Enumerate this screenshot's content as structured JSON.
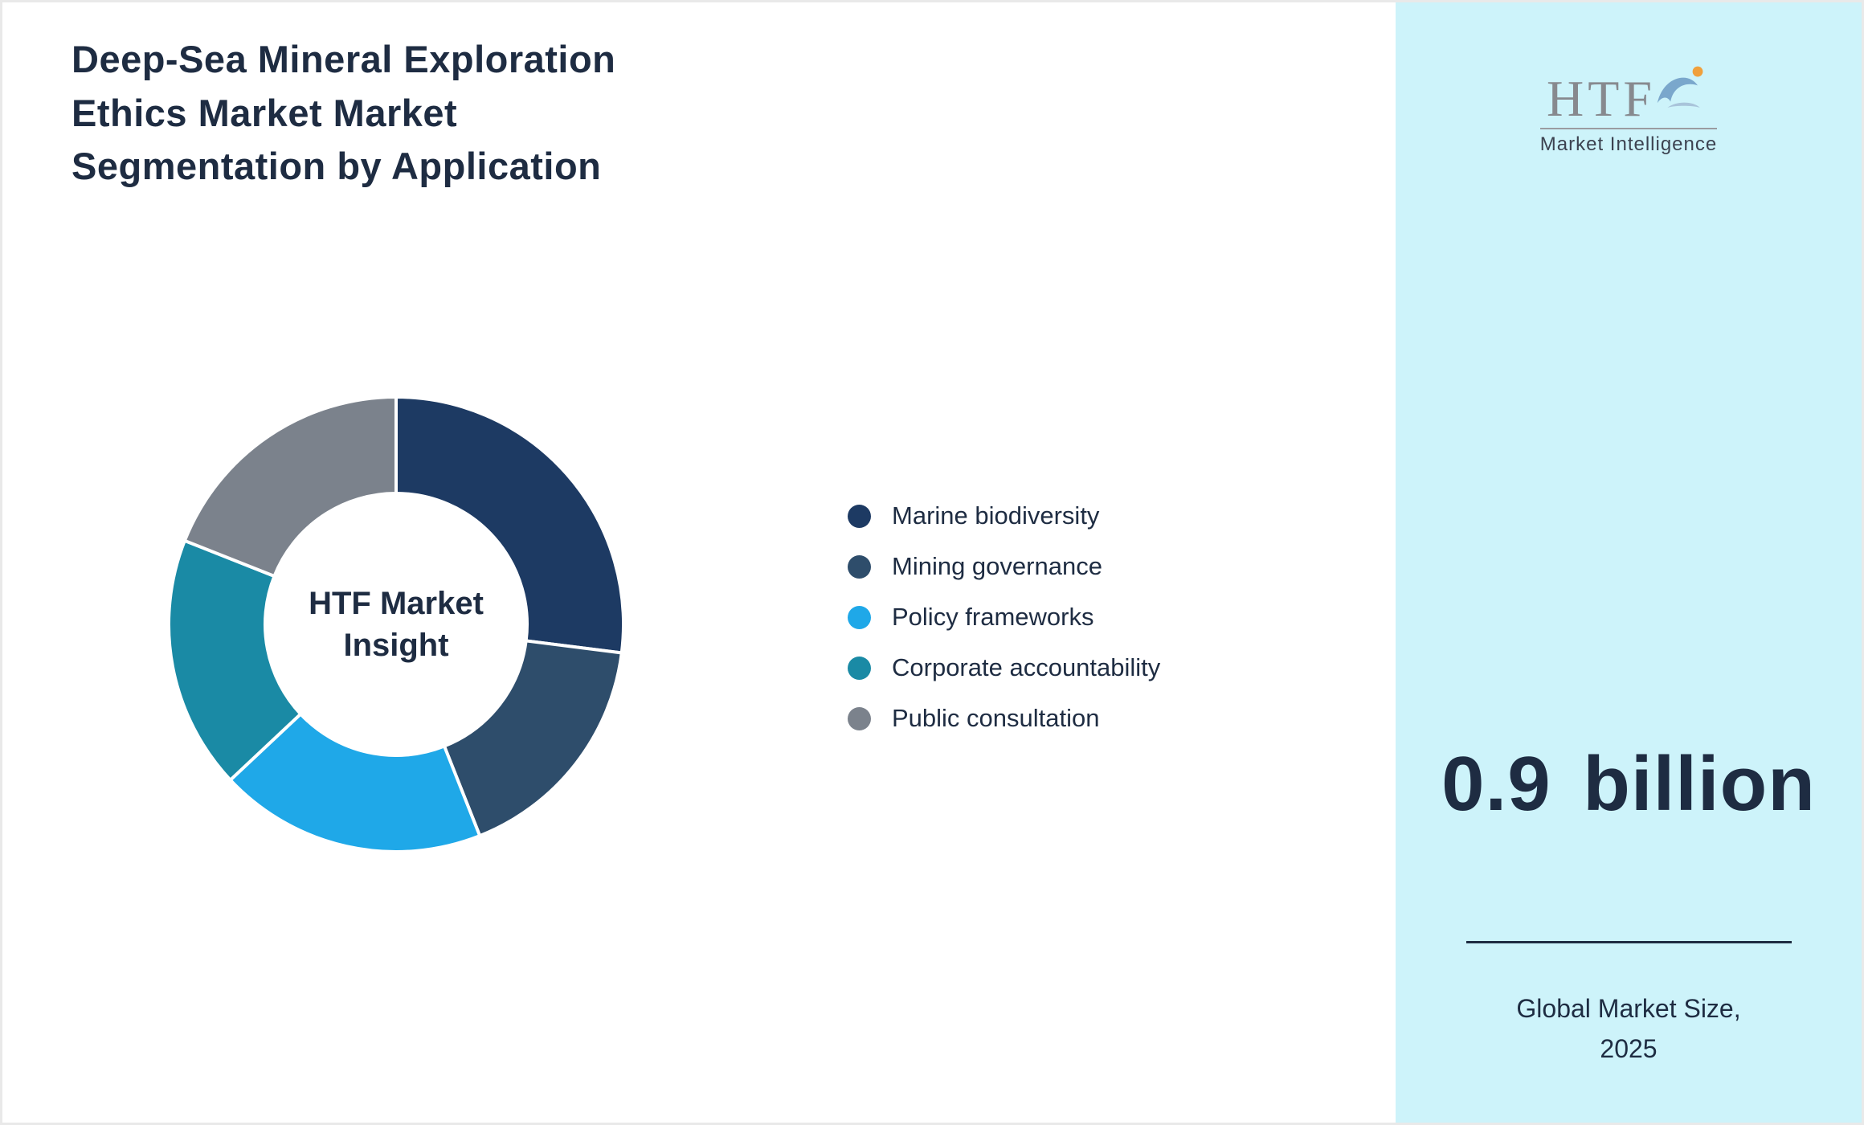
{
  "page": {
    "border_color": "#e9e9e9",
    "background": "#ffffff"
  },
  "header": {
    "title_lines": [
      "Deep-Sea Mineral Exploration",
      "Ethics Market Market",
      "Segmentation by Application"
    ]
  },
  "chart_data": {
    "type": "pie",
    "donut": true,
    "title": "Deep-Sea Mineral Exploration Ethics Market Market Segmentation by Application",
    "center_label_lines": [
      "HTF Market",
      "Insight"
    ],
    "legend_position": "right",
    "segments": [
      {
        "label": "Marine biodiversity",
        "value": 27,
        "color": "#1d3a63"
      },
      {
        "label": "Mining governance",
        "value": 17,
        "color": "#2e4d6b"
      },
      {
        "label": "Policy frameworks",
        "value": 19,
        "color": "#1fa8e8"
      },
      {
        "label": "Corporate accountability",
        "value": 18,
        "color": "#1a8aa5"
      },
      {
        "label": "Public consultation",
        "value": 19,
        "color": "#7b828c"
      }
    ]
  },
  "side_panel": {
    "background": "#cdf3fa",
    "logo": {
      "brand": "HTF",
      "tagline": "Market Intelligence"
    },
    "market_size": "0.9 billion",
    "caption": "Global Market Size, 2025"
  }
}
